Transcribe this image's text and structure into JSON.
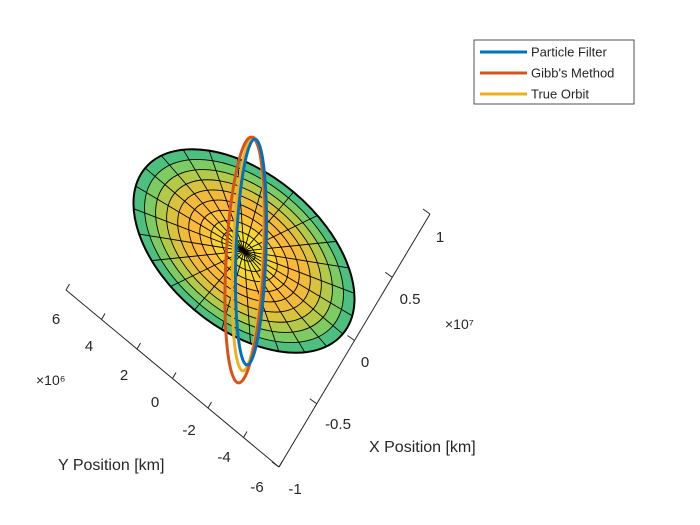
{
  "chart_data": {
    "type": "line",
    "title": "",
    "xlabel": "X Position [km]",
    "ylabel": "Y Position [km]",
    "zlabel": "",
    "x_ticks": [
      "-1",
      "-0.5",
      "0",
      "0.5",
      "1"
    ],
    "x_exponent": "×10⁷",
    "y_ticks": [
      "-6",
      "-4",
      "-2",
      "0",
      "2",
      "4",
      "6"
    ],
    "y_exponent": "×10⁶",
    "xlim": [
      -10000000,
      10000000
    ],
    "ylim": [
      -6000000,
      6000000
    ],
    "legend": {
      "placement": "top-right"
    },
    "grid": false,
    "surface": {
      "shape": "ellipsoid (Earth)",
      "colormap": "parula"
    },
    "series": [
      {
        "name": "Particle Filter",
        "color": "#0072BD"
      },
      {
        "name": "Gibb's Method",
        "color": "#D95319"
      },
      {
        "name": "True Orbit",
        "color": "#EDB120"
      }
    ]
  }
}
